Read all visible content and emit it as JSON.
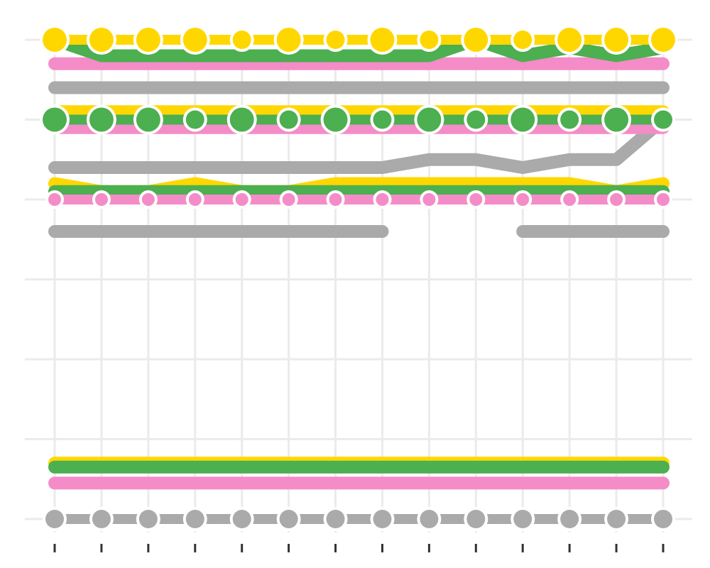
{
  "chart_data": {
    "type": "line",
    "title": "",
    "xlabel": "",
    "ylabel": "",
    "x": [
      1,
      2,
      3,
      4,
      5,
      6,
      7,
      8,
      9,
      10,
      11,
      12,
      13,
      14
    ],
    "ylim": [
      0,
      6
    ],
    "y_gridlines": [
      0,
      1,
      2,
      3,
      4,
      5,
      6
    ],
    "grid": true,
    "legend": "none",
    "colors": {
      "gray": "#aaaaaa",
      "pink": "#f48cc8",
      "green": "#4caf50",
      "yellow": "#ffd700",
      "grid": "#ebebeb",
      "tick": "#333333"
    },
    "groups": [
      {
        "level": 6,
        "series": [
          {
            "color_key": "gray",
            "values": [
              5.4,
              5.4,
              5.4,
              5.4,
              5.4,
              5.4,
              5.4,
              5.4,
              5.4,
              5.4,
              5.4,
              5.4,
              5.4,
              5.4
            ]
          },
          {
            "color_key": "pink",
            "values": [
              5.7,
              5.7,
              5.7,
              5.7,
              5.7,
              5.7,
              5.7,
              5.7,
              5.7,
              5.7,
              5.7,
              5.7,
              5.7,
              5.7
            ]
          },
          {
            "color_key": "green",
            "values": [
              6.0,
              5.8,
              5.8,
              5.8,
              5.8,
              5.8,
              5.8,
              5.8,
              5.8,
              6.0,
              5.8,
              5.9,
              5.8,
              5.9
            ]
          },
          {
            "color_key": "yellow",
            "values": [
              6.0,
              6.0,
              6.0,
              6.0,
              6.0,
              6.0,
              6.0,
              6.0,
              6.0,
              6.0,
              6.0,
              6.0,
              6.0,
              6.0
            ],
            "markers": true,
            "marker_sizes": [
              3,
              3,
              3,
              3,
              2,
              3,
              2,
              3,
              2,
              3,
              2,
              3,
              3,
              3
            ]
          }
        ]
      },
      {
        "level": 5,
        "series": [
          {
            "color_key": "gray",
            "values": [
              4.4,
              4.4,
              4.4,
              4.4,
              4.4,
              4.4,
              4.4,
              4.4,
              4.5,
              4.5,
              4.4,
              4.5,
              4.5,
              5.0
            ]
          },
          {
            "color_key": "pink",
            "values": [
              4.9,
              4.9,
              4.9,
              4.9,
              4.9,
              4.9,
              4.9,
              4.9,
              4.9,
              4.9,
              4.9,
              4.9,
              4.9,
              4.9
            ]
          },
          {
            "color_key": "yellow",
            "values": [
              5.1,
              5.1,
              5.1,
              5.1,
              5.1,
              5.1,
              5.1,
              5.1,
              5.1,
              5.1,
              5.1,
              5.1,
              5.1,
              5.1
            ]
          },
          {
            "color_key": "green",
            "values": [
              5.0,
              5.0,
              5.0,
              5.0,
              5.0,
              5.0,
              5.0,
              5.0,
              5.0,
              5.0,
              5.0,
              5.0,
              5.0,
              5.0
            ],
            "markers": true,
            "marker_sizes": [
              3,
              3,
              3,
              2,
              3,
              2,
              3,
              2,
              3,
              2,
              3,
              2,
              3,
              2
            ]
          }
        ]
      },
      {
        "level": 4,
        "series": [
          {
            "color_key": "gray",
            "values": [
              3.6,
              3.6,
              3.6,
              3.6,
              3.6,
              3.6,
              3.6,
              3.6,
              null,
              null,
              3.6,
              3.6,
              3.6,
              3.6
            ]
          },
          {
            "color_key": "yellow",
            "values": [
              4.2,
              4.1,
              4.1,
              4.2,
              4.1,
              4.1,
              4.2,
              4.2,
              4.2,
              4.2,
              4.2,
              4.2,
              4.1,
              4.2
            ]
          },
          {
            "color_key": "green",
            "values": [
              4.1,
              4.1,
              4.1,
              4.1,
              4.1,
              4.1,
              4.1,
              4.1,
              4.1,
              4.1,
              4.1,
              4.1,
              4.1,
              4.1
            ]
          },
          {
            "color_key": "pink",
            "values": [
              4.0,
              4.0,
              4.0,
              4.0,
              4.0,
              4.0,
              4.0,
              4.0,
              4.0,
              4.0,
              4.0,
              4.0,
              4.0,
              4.0
            ],
            "markers": true,
            "marker_sizes": [
              1,
              1,
              1,
              1,
              1,
              1,
              1,
              1,
              1,
              1,
              1,
              1,
              1,
              1
            ]
          }
        ]
      },
      {
        "level": 0,
        "series": [
          {
            "color_key": "pink",
            "values": [
              0.45,
              0.45,
              0.45,
              0.45,
              0.45,
              0.45,
              0.45,
              0.45,
              0.45,
              0.45,
              0.45,
              0.45,
              0.45,
              0.45
            ]
          },
          {
            "color_key": "yellow",
            "values": [
              0.7,
              0.7,
              0.7,
              0.7,
              0.7,
              0.7,
              0.7,
              0.7,
              0.7,
              0.7,
              0.7,
              0.7,
              0.7,
              0.7
            ]
          },
          {
            "color_key": "green",
            "values": [
              0.65,
              0.65,
              0.65,
              0.65,
              0.65,
              0.65,
              0.65,
              0.65,
              0.65,
              0.65,
              0.65,
              0.65,
              0.65,
              0.65
            ]
          },
          {
            "color_key": "gray",
            "values": [
              0.0,
              0.0,
              0.0,
              0.0,
              0.0,
              0.0,
              0.0,
              0.0,
              0.0,
              0.0,
              0.0,
              0.0,
              0.0,
              0.0
            ],
            "markers": true,
            "marker_sizes": [
              2,
              2,
              2,
              2,
              2,
              2,
              2,
              2,
              2,
              2,
              2,
              2,
              2,
              2
            ]
          }
        ]
      }
    ]
  }
}
